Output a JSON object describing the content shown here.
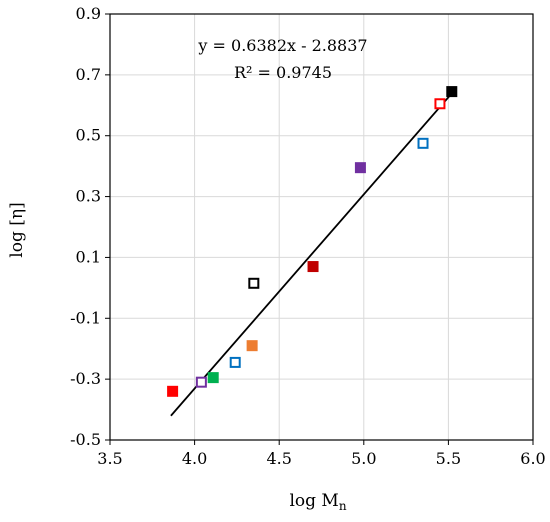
{
  "chart_data": {
    "type": "scatter",
    "xlabel": "log M",
    "xlabel_subscript": "n",
    "ylabel": "log [η]",
    "xlim": [
      3.5,
      6.0
    ],
    "ylim": [
      -0.5,
      0.9
    ],
    "x_ticks": [
      "3.5",
      "4.0",
      "4.5",
      "5.0",
      "5.5",
      "6.0"
    ],
    "y_ticks": [
      "-0.5",
      "-0.3",
      "-0.1",
      "0.1",
      "0.3",
      "0.5",
      "0.7",
      "0.9"
    ],
    "grid": true,
    "legend": "none",
    "equation": "y = 0.6382x - 2.8837",
    "r_squared": "R² = 0.9745",
    "trendline": {
      "slope": 0.6382,
      "intercept": -2.8837,
      "x_range": [
        3.86,
        5.53
      ],
      "color": "#000000"
    },
    "points": [
      {
        "x": 3.87,
        "y": -0.34,
        "color": "#ff0000",
        "filled": true
      },
      {
        "x": 4.04,
        "y": -0.31,
        "color": "#7030a0",
        "filled": false
      },
      {
        "x": 4.11,
        "y": -0.295,
        "color": "#00b050",
        "filled": true
      },
      {
        "x": 4.24,
        "y": -0.245,
        "color": "#0070c0",
        "filled": false
      },
      {
        "x": 4.34,
        "y": -0.19,
        "color": "#ed7d31",
        "filled": true
      },
      {
        "x": 4.35,
        "y": 0.015,
        "color": "#000000",
        "filled": false
      },
      {
        "x": 4.7,
        "y": 0.07,
        "color": "#c00000",
        "filled": true
      },
      {
        "x": 4.98,
        "y": 0.395,
        "color": "#7030a0",
        "filled": true
      },
      {
        "x": 5.35,
        "y": 0.475,
        "color": "#0070c0",
        "filled": false
      },
      {
        "x": 5.45,
        "y": 0.605,
        "color": "#ff0000",
        "filled": false
      },
      {
        "x": 5.52,
        "y": 0.645,
        "color": "#000000",
        "filled": true
      }
    ]
  }
}
